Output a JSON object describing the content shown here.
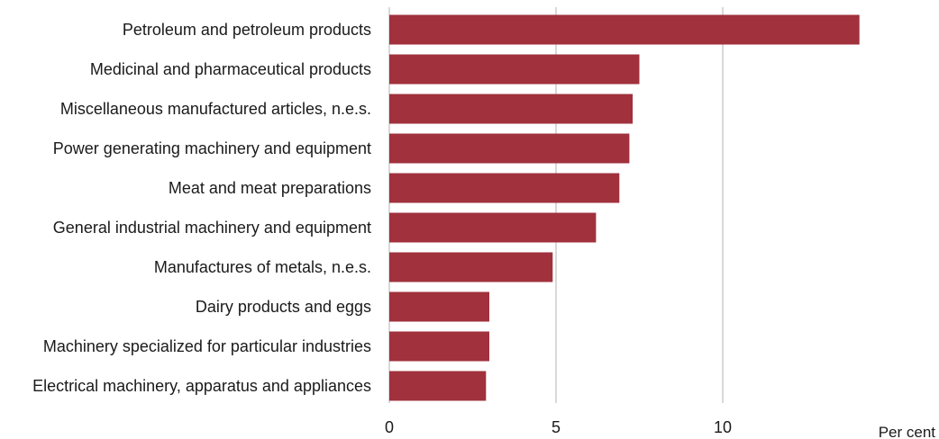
{
  "chart_data": {
    "type": "bar",
    "orientation": "horizontal",
    "categories": [
      "Petroleum and petroleum products",
      "Medicinal and pharmaceutical products",
      "Miscellaneous manufactured articles, n.e.s.",
      "Power generating machinery and equipment",
      "Meat and meat preparations",
      "General industrial machinery and equipment",
      "Manufactures of metals, n.e.s.",
      "Dairy products and eggs",
      "Machinery specialized for particular industries",
      "Electrical machinery, apparatus and appliances"
    ],
    "values": [
      14.1,
      7.5,
      7.3,
      7.2,
      6.9,
      6.2,
      4.9,
      3.0,
      3.0,
      2.9
    ],
    "xlabel": "Per cent",
    "ylabel": "",
    "xlim": [
      0,
      15
    ],
    "xticks": [
      "0",
      "5",
      "10"
    ],
    "grid": true,
    "colors": {
      "bar": "#a0313d",
      "grid": "#d9d9d9"
    }
  }
}
